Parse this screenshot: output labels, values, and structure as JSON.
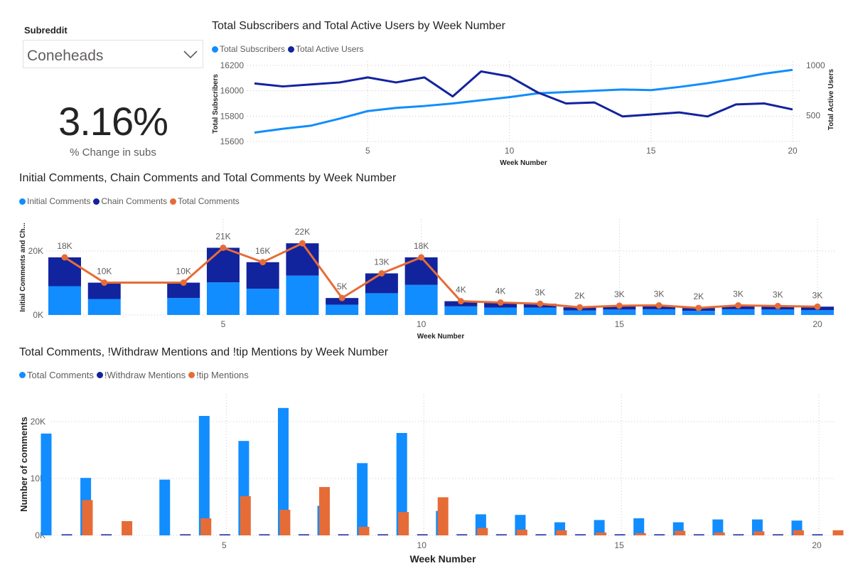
{
  "slicer": {
    "title": "Subreddit",
    "value": "Coneheads"
  },
  "kpi": {
    "value": "3.16%",
    "label": "% Change in subs"
  },
  "colors": {
    "light_blue": "#118DFF",
    "dark_blue": "#12239E",
    "orange": "#E66C37",
    "axis_text": "#605e5c",
    "grid": "#c8c8c8"
  },
  "icons": {
    "slicer_dropdown": "chevron-down-icon"
  },
  "chart_data": [
    {
      "type": "line",
      "title": "Total Subscribers and Total Active Users by Week Number",
      "xlabel": "Week Number",
      "ylabel": "Total Subscribers",
      "y2label": "Total Active Users",
      "x": [
        1,
        2,
        3,
        4,
        5,
        6,
        7,
        8,
        9,
        10,
        11,
        12,
        13,
        14,
        15,
        16,
        17,
        18,
        19,
        20
      ],
      "xticks": [
        5,
        10,
        15,
        20
      ],
      "ylim": [
        15600,
        16200
      ],
      "yticks": [
        15600,
        15800,
        16000,
        16200
      ],
      "y2lim": [
        240,
        1000
      ],
      "y2ticks": [
        500,
        1000
      ],
      "series": [
        {
          "name": "Total Subscribers",
          "axis": "left",
          "color": "#118DFF",
          "values": [
            15670,
            15700,
            15725,
            15780,
            15840,
            15865,
            15880,
            15900,
            15925,
            15950,
            15980,
            15990,
            16000,
            16010,
            16005,
            16030,
            16060,
            16095,
            16135,
            16165
          ]
        },
        {
          "name": "Total Active Users",
          "axis": "right",
          "color": "#12239E",
          "values": [
            820,
            790,
            810,
            830,
            880,
            830,
            880,
            690,
            940,
            890,
            730,
            620,
            630,
            490,
            510,
            530,
            490,
            610,
            620,
            560
          ]
        }
      ],
      "legend_position": "top-left",
      "grid": true
    },
    {
      "type": "bar",
      "title": "Initial Comments, Chain Comments and Total Comments by Week Number",
      "xlabel": "Week Number",
      "ylabel": "Initial Comments and Ch...",
      "x": [
        1,
        2,
        3,
        4,
        5,
        6,
        7,
        8,
        9,
        10,
        11,
        12,
        13,
        14,
        15,
        16,
        17,
        18,
        19,
        20
      ],
      "xticks": [
        5,
        10,
        15,
        20
      ],
      "ylim": [
        0,
        24000
      ],
      "yticks": [
        0,
        20000
      ],
      "ytick_labels": [
        "0K",
        "20K"
      ],
      "series": [
        {
          "name": "Initial Comments",
          "kind": "stacked-bar",
          "color": "#118DFF",
          "values": [
            9000,
            5000,
            null,
            5300,
            10200,
            8200,
            12300,
            3200,
            6800,
            9400,
            2700,
            2300,
            2300,
            1400,
            1700,
            1800,
            1300,
            1800,
            1700,
            1500
          ]
        },
        {
          "name": "Chain Comments",
          "kind": "stacked-bar",
          "color": "#12239E",
          "values": [
            9000,
            5100,
            null,
            4800,
            10800,
            8300,
            10100,
            2100,
            6200,
            8600,
            1600,
            1600,
            1200,
            1000,
            1200,
            1200,
            900,
            1100,
            1100,
            1100
          ]
        },
        {
          "name": "Total Comments",
          "kind": "line",
          "color": "#E66C37",
          "values": [
            18000,
            10100,
            null,
            10100,
            21000,
            16500,
            22400,
            5300,
            13000,
            18000,
            4300,
            3900,
            3500,
            2400,
            2900,
            3000,
            2200,
            3000,
            2800,
            2600
          ]
        }
      ],
      "data_labels": [
        "18K",
        "10K",
        null,
        "10K",
        "21K",
        "16K",
        "22K",
        "5K",
        "13K",
        "18K",
        "4K",
        "4K",
        "3K",
        "2K",
        "3K",
        "3K",
        "2K",
        "3K",
        "3K",
        "3K"
      ],
      "legend_position": "top-left",
      "grid": true
    },
    {
      "type": "bar",
      "title": "Total Comments, !Withdraw Mentions and !tip Mentions by Week Number",
      "xlabel": "Week Number",
      "ylabel": "Number of comments",
      "x": [
        1,
        2,
        3,
        4,
        5,
        6,
        7,
        8,
        9,
        10,
        11,
        12,
        13,
        14,
        15,
        16,
        17,
        18,
        19,
        20
      ],
      "xticks": [
        5,
        10,
        15,
        20
      ],
      "ylim": [
        0,
        24000
      ],
      "yticks": [
        0,
        10000,
        20000
      ],
      "ytick_labels": [
        "0K",
        "10K",
        "20K"
      ],
      "series": [
        {
          "name": "Total Comments",
          "color": "#118DFF",
          "values": [
            17900,
            10100,
            null,
            9800,
            21000,
            16600,
            22400,
            5200,
            12700,
            18000,
            4300,
            3700,
            3600,
            2300,
            2700,
            3000,
            2300,
            2800,
            2800,
            2600
          ]
        },
        {
          "name": "!Withdraw Mentions",
          "color": "#12239E",
          "values": [
            100,
            100,
            null,
            100,
            100,
            100,
            100,
            100,
            100,
            100,
            100,
            100,
            100,
            100,
            100,
            100,
            100,
            100,
            100,
            100
          ]
        },
        {
          "name": "!tip Mentions",
          "color": "#E66C37",
          "values": [
            6200,
            2500,
            null,
            3000,
            6900,
            4500,
            8500,
            1500,
            4100,
            6700,
            1300,
            1000,
            900,
            500,
            400,
            800,
            500,
            700,
            900,
            900
          ]
        }
      ],
      "legend_position": "top-left",
      "grid": true
    }
  ]
}
